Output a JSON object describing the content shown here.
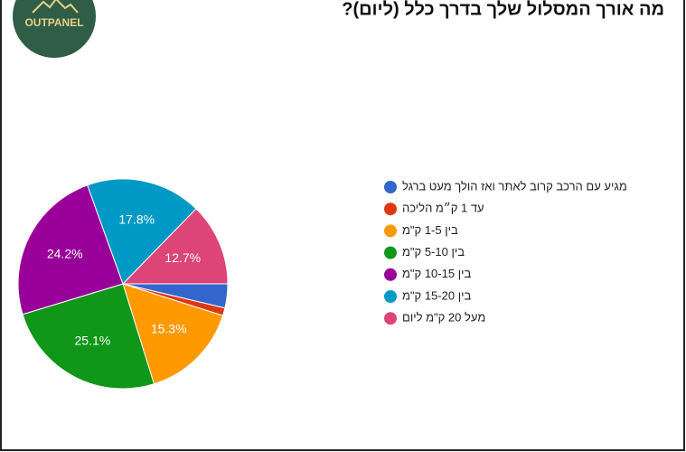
{
  "logo": "OUTPANEL",
  "chart_data": {
    "type": "pie",
    "title": "מה אורך המסלול שלך בדרך כלל (ליום)?",
    "categories": [
      "מגיע עם הרכב קרוב לאתר ואז הולך מעט ברגל",
      "עד 1 ק״מ הליכה",
      "בין 1-5 ק\"מ",
      "בין 5-10 ק\"מ",
      "בין 10-15 ק\"מ",
      "בין 15-20 ק\"מ",
      "מעל 20 ק\"מ ליום"
    ],
    "values": [
      3.7,
      1.2,
      15.3,
      25.1,
      24.2,
      17.8,
      12.7
    ],
    "value_labels": [
      null,
      null,
      "15.3%",
      "25.1%",
      "24.2%",
      "17.8%",
      "12.7%"
    ],
    "colors": [
      "#3366cc",
      "#dc3912",
      "#ff9900",
      "#109618",
      "#990099",
      "#0099c6",
      "#dd4477"
    ]
  }
}
